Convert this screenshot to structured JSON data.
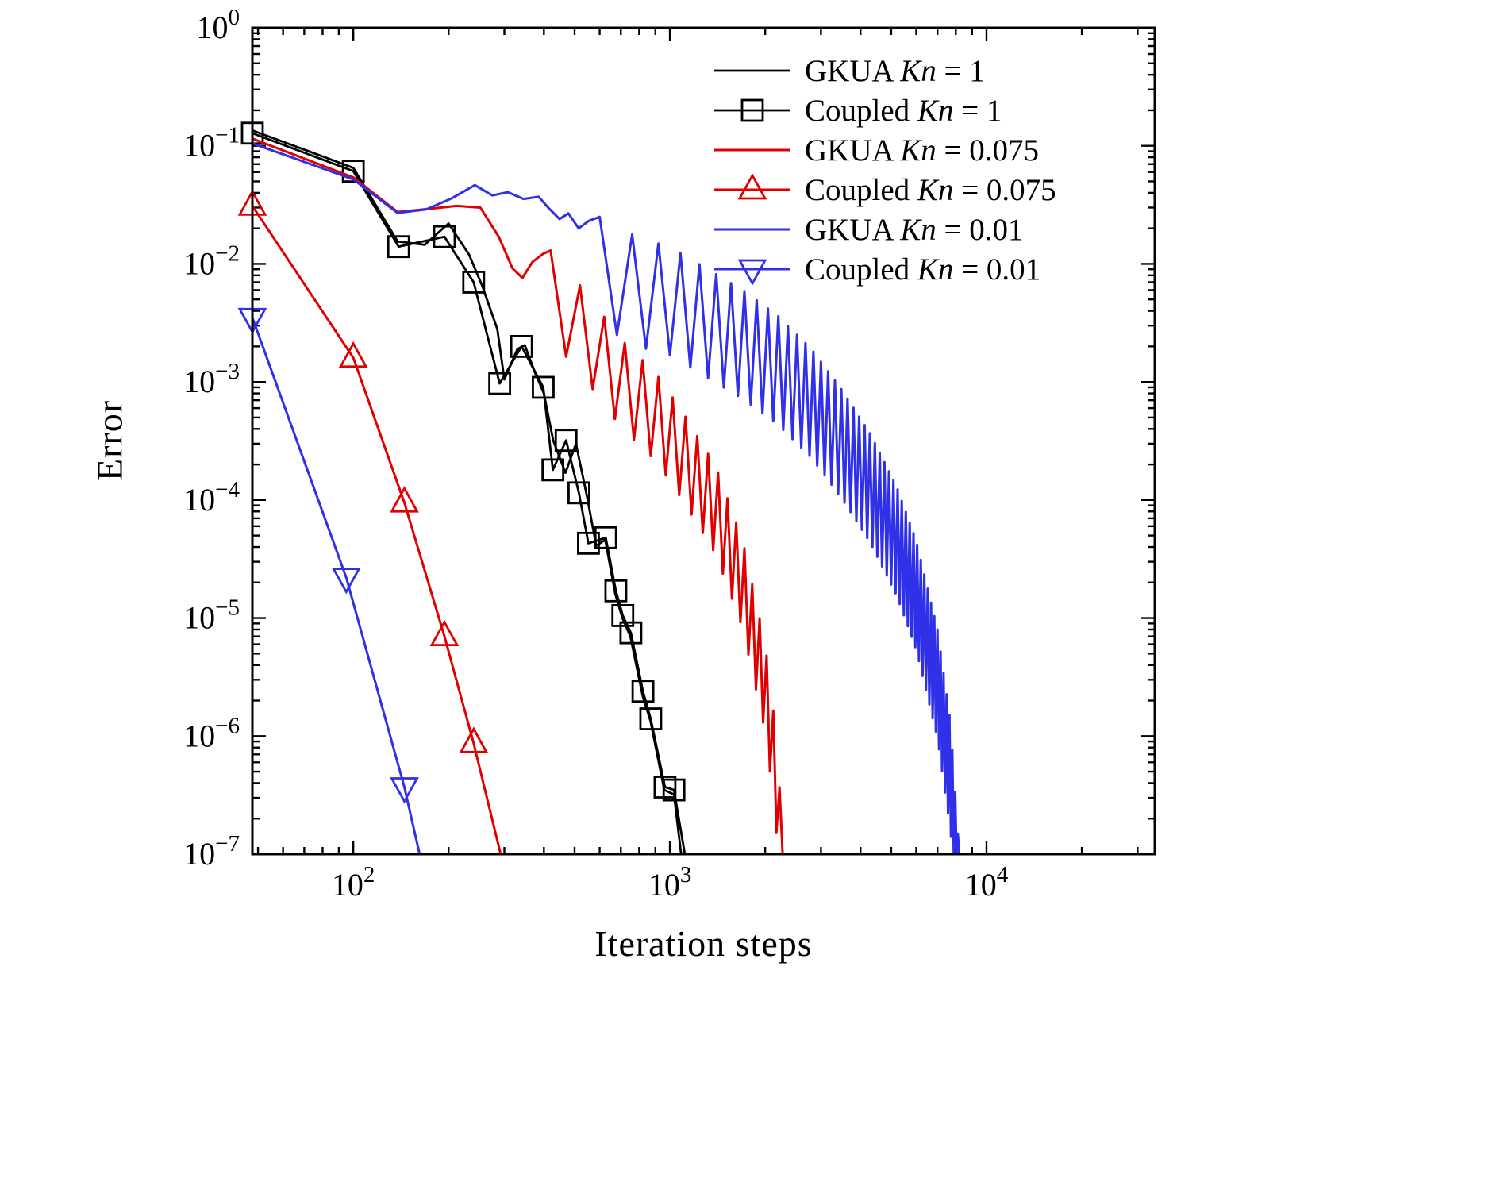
{
  "chart_data": {
    "type": "line",
    "title": "",
    "xlabel": "Iteration steps",
    "ylabel": "Error",
    "x_scale": "log",
    "y_scale": "log",
    "grid": false,
    "legend_position": "top-right-inside",
    "axes": {
      "x": {
        "label": "Iteration steps",
        "min": 48,
        "max": 34000,
        "ticks_exp": [
          2,
          3,
          4
        ]
      },
      "y": {
        "label": "Error",
        "min": 1e-07,
        "max": 1,
        "ticks_exp": [
          0,
          -1,
          -2,
          -3,
          -4,
          -5,
          -6,
          -7
        ]
      }
    },
    "colors": {
      "black": "#000000",
      "red": "#e00000",
      "blue": "#3030e8"
    },
    "series": [
      {
        "id": "gkua-kn-1",
        "legend": {
          "prefix": "GKUA",
          "var": "Kn",
          "value": "= 1"
        },
        "color": "#000000",
        "line_width": 2.8,
        "marker": "none",
        "points": [
          [
            48,
            0.135
          ],
          [
            100,
            0.065
          ],
          [
            138,
            0.0155
          ],
          [
            168,
            0.0145
          ],
          [
            200,
            0.022
          ],
          [
            232,
            0.012
          ],
          [
            255,
            0.0066
          ],
          [
            285,
            0.0028
          ],
          [
            300,
            0.00105
          ],
          [
            330,
            0.0019
          ],
          [
            348,
            0.00205
          ],
          [
            375,
            0.0012
          ],
          [
            400,
            0.0008
          ],
          [
            428,
            0.00032
          ],
          [
            468,
            0.00017
          ],
          [
            505,
            0.0003
          ],
          [
            548,
            0.000105
          ],
          [
            585,
            4.1e-05
          ],
          [
            625,
            4.6e-05
          ],
          [
            672,
            1.6e-05
          ],
          [
            708,
            1e-05
          ],
          [
            750,
            7e-06
          ],
          [
            820,
            2.2e-06
          ],
          [
            868,
            1.35e-06
          ],
          [
            960,
            3.5e-07
          ],
          [
            1030,
            3.2e-07
          ],
          [
            1085,
            1e-07
          ]
        ]
      },
      {
        "id": "coupled-kn-1",
        "legend": {
          "prefix": "Coupled",
          "var": "Kn",
          "value": "= 1"
        },
        "color": "#000000",
        "line_width": 2.8,
        "marker": "square",
        "points": [
          [
            48,
            0.128
          ],
          [
            100,
            0.061
          ],
          [
            139,
            0.014
          ],
          [
            194,
            0.017
          ],
          [
            240,
            0.007
          ],
          [
            290,
            0.00097
          ],
          [
            340,
            0.002
          ],
          [
            398,
            0.0009
          ],
          [
            427,
            0.00018
          ],
          [
            470,
            0.00032
          ],
          [
            516,
            0.000115
          ],
          [
            553,
            4.3e-05
          ],
          [
            627,
            4.8e-05
          ],
          [
            675,
            1.7e-05
          ],
          [
            710,
            1.05e-05
          ],
          [
            753,
            7.5e-06
          ],
          [
            822,
            2.4e-06
          ],
          [
            870,
            1.4e-06
          ],
          [
            965,
            3.7e-07
          ],
          [
            1030,
            3.5e-07
          ],
          [
            1115,
            1e-07
          ]
        ],
        "marker_points": [
          [
            48,
            0.128
          ],
          [
            100,
            0.061
          ],
          [
            139,
            0.014
          ],
          [
            194,
            0.017
          ],
          [
            240,
            0.007
          ],
          [
            290,
            0.00097
          ],
          [
            340,
            0.002
          ],
          [
            398,
            0.0009
          ],
          [
            427,
            0.00018
          ],
          [
            470,
            0.00032
          ],
          [
            516,
            0.000115
          ],
          [
            553,
            4.3e-05
          ],
          [
            627,
            4.8e-05
          ],
          [
            675,
            1.7e-05
          ],
          [
            710,
            1.05e-05
          ],
          [
            753,
            7.5e-06
          ],
          [
            822,
            2.4e-06
          ],
          [
            870,
            1.4e-06
          ],
          [
            965,
            3.7e-07
          ],
          [
            1030,
            3.5e-07
          ]
        ]
      },
      {
        "id": "gkua-kn-0075",
        "legend": {
          "prefix": "GKUA",
          "var": "Kn",
          "value": "= 0.075"
        },
        "color": "#e00000",
        "line_width": 3,
        "marker": "none",
        "points": [
          [
            48,
            0.115
          ],
          [
            100,
            0.054
          ],
          [
            138,
            0.0275
          ],
          [
            172,
            0.0292
          ],
          [
            212,
            0.031
          ],
          [
            252,
            0.03
          ],
          [
            288,
            0.017
          ],
          [
            318,
            0.0092
          ],
          [
            342,
            0.0076
          ],
          [
            368,
            0.0104
          ],
          [
            398,
            0.0122
          ],
          [
            420,
            0.013
          ]
        ],
        "oscillation": {
          "from": 420,
          "to": 2300,
          "period": 100,
          "dip_ratio": 0.18,
          "top": [
            [
              420,
              0.013
            ],
            [
              550,
              0.0055
            ],
            [
              700,
              0.0023
            ],
            [
              900,
              0.0012
            ],
            [
              1100,
              0.00055
            ],
            [
              1400,
              0.00019
            ],
            [
              1700,
              4.5e-05
            ],
            [
              2000,
              6e-06
            ],
            [
              2150,
              1.2e-06
            ],
            [
              2300,
              1e-07
            ]
          ]
        }
      },
      {
        "id": "coupled-kn-0075",
        "legend": {
          "prefix": "Coupled",
          "var": "Kn",
          "value": "= 0.075"
        },
        "color": "#e00000",
        "line_width": 3,
        "marker": "triangle-up",
        "points": [
          [
            48,
            0.031
          ],
          [
            100,
            0.0016
          ],
          [
            145,
            9.5e-05
          ],
          [
            194,
            7e-06
          ],
          [
            240,
            8.7e-07
          ],
          [
            292,
            1e-07
          ]
        ],
        "marker_points": [
          [
            48,
            0.031
          ],
          [
            100,
            0.0016
          ],
          [
            145,
            9.5e-05
          ],
          [
            194,
            7e-06
          ],
          [
            240,
            8.7e-07
          ]
        ]
      },
      {
        "id": "gkua-kn-001",
        "legend": {
          "prefix": "GKUA",
          "var": "Kn",
          "value": "= 0.01"
        },
        "color": "#3030e8",
        "line_width": 3,
        "marker": "none",
        "points": [
          [
            48,
            0.105
          ],
          [
            100,
            0.052
          ],
          [
            138,
            0.027
          ],
          [
            170,
            0.029
          ],
          [
            205,
            0.036
          ],
          [
            242,
            0.0465
          ],
          [
            275,
            0.038
          ],
          [
            308,
            0.0405
          ],
          [
            345,
            0.0355
          ],
          [
            385,
            0.037
          ],
          [
            415,
            0.0295
          ],
          [
            448,
            0.024
          ],
          [
            478,
            0.0268
          ],
          [
            515,
            0.02
          ],
          [
            555,
            0.0232
          ],
          [
            600,
            0.025
          ]
        ],
        "oscillation": {
          "from": 600,
          "to": 8200,
          "period": 160,
          "dip_ratio": 0.12,
          "top": [
            [
              600,
              0.025
            ],
            [
              800,
              0.0165
            ],
            [
              1000,
              0.014
            ],
            [
              1300,
              0.0092
            ],
            [
              1700,
              0.006
            ],
            [
              2200,
              0.0036
            ],
            [
              2800,
              0.0019
            ],
            [
              3500,
              0.00085
            ],
            [
              4300,
              0.00036
            ],
            [
              5200,
              0.00013
            ],
            [
              6000,
              4.5e-05
            ],
            [
              7000,
              8e-06
            ],
            [
              7700,
              1.3e-06
            ],
            [
              8200,
              1e-07
            ]
          ]
        }
      },
      {
        "id": "coupled-kn-001",
        "legend": {
          "prefix": "Coupled",
          "var": "Kn",
          "value": "= 0.01"
        },
        "color": "#3030e8",
        "line_width": 3,
        "marker": "triangle-down",
        "points": [
          [
            48,
            0.0035
          ],
          [
            95,
            2.2e-05
          ],
          [
            145,
            3.7e-07
          ],
          [
            162,
            1e-07
          ]
        ],
        "marker_points": [
          [
            48,
            0.0035
          ],
          [
            95,
            2.2e-05
          ],
          [
            145,
            3.7e-07
          ]
        ]
      }
    ]
  }
}
